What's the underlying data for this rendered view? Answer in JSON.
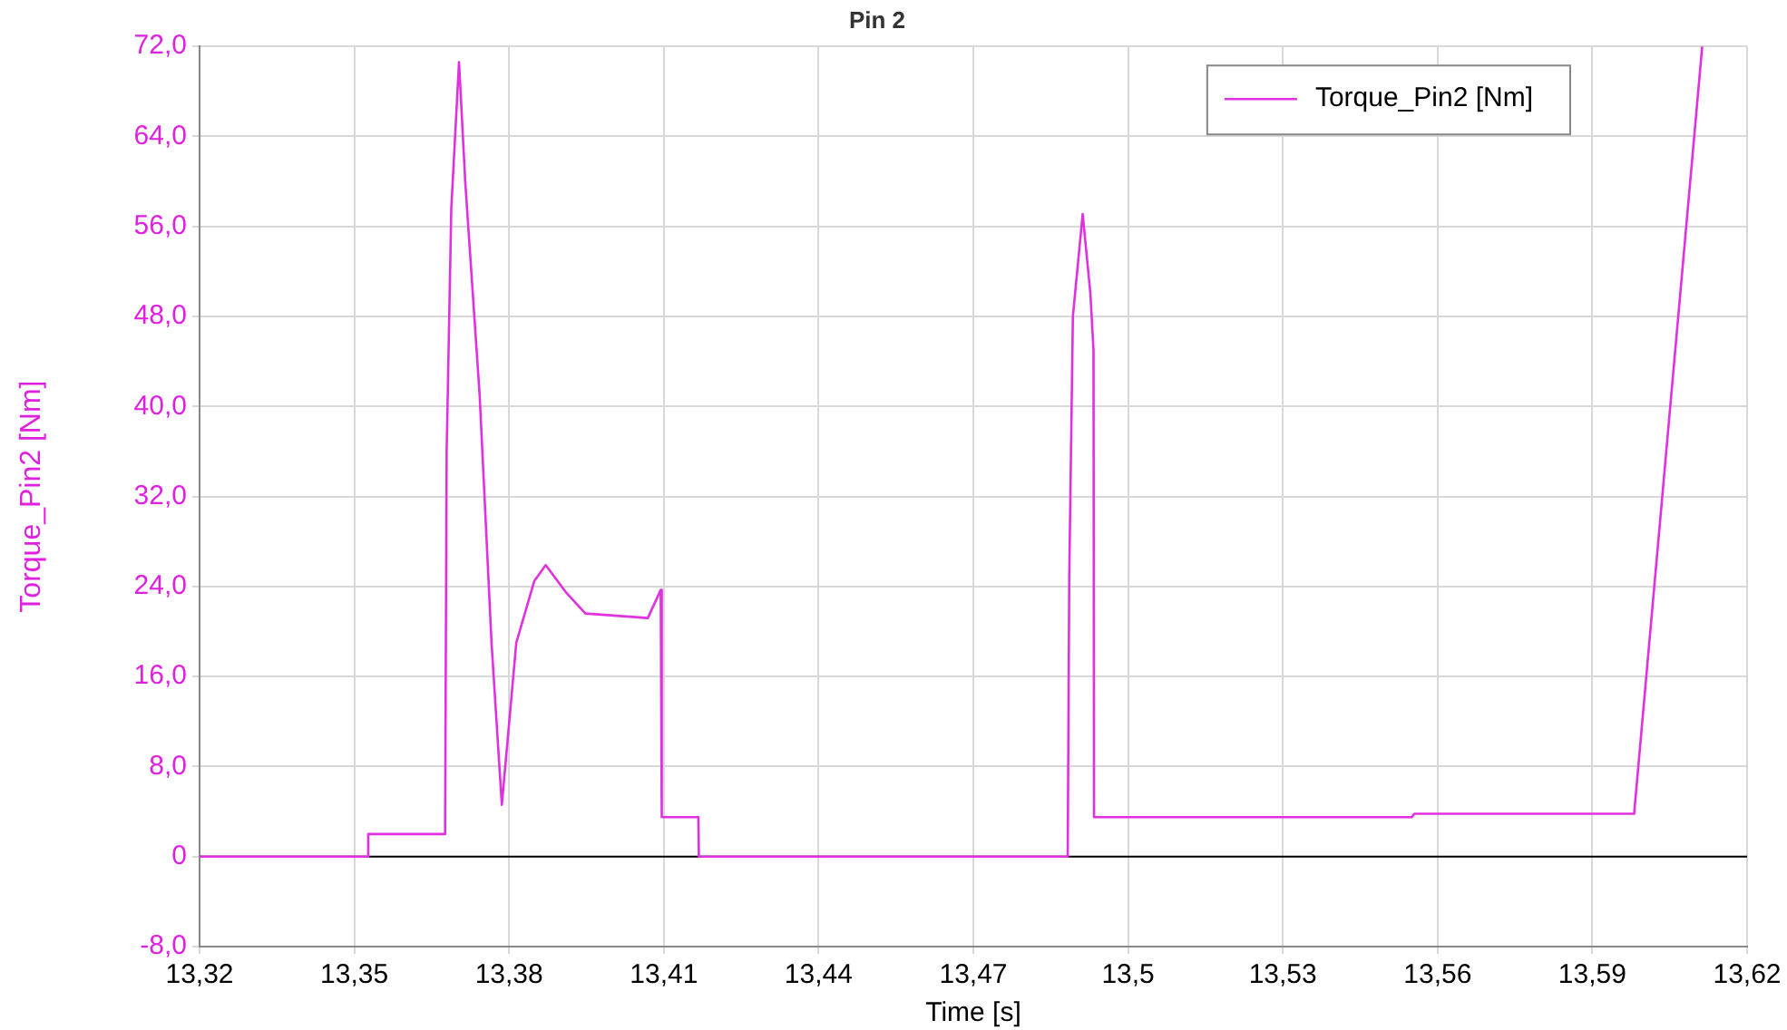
{
  "chart_data": {
    "type": "line",
    "title": "Pin 2",
    "xlabel": "Time [s]",
    "ylabel": "Torque_Pin2 [Nm]",
    "x": [
      13.32,
      13.3526,
      13.3527,
      13.3676,
      13.3679,
      13.3688,
      13.3703,
      13.3715,
      13.3743,
      13.3766,
      13.3786,
      13.3814,
      13.3849,
      13.3871,
      13.391,
      13.3948,
      13.4069,
      13.4094,
      13.4096,
      13.4167,
      13.4168,
      13.4883,
      13.4886,
      13.4893,
      13.4912,
      13.4927,
      13.4933,
      13.4934,
      13.555,
      13.5555,
      13.5981,
      13.6113
    ],
    "series": [
      {
        "name": "Torque_Pin2 [Nm]",
        "color": "#e030e0",
        "values": [
          0,
          0,
          2,
          2,
          36,
          57.6,
          70.6,
          60,
          41,
          19,
          4.6,
          19,
          24.5,
          25.9,
          23.5,
          21.6,
          21.2,
          23.7,
          3.5,
          3.5,
          0,
          0,
          25,
          48,
          57.1,
          50,
          45,
          3.5,
          3.5,
          3.8,
          3.8,
          72
        ]
      }
    ],
    "xlim": [
      13.32,
      13.62
    ],
    "xticks": [
      {
        "value": 13.32,
        "label": "13,32"
      },
      {
        "value": 13.35,
        "label": "13,35"
      },
      {
        "value": 13.38,
        "label": "13,38"
      },
      {
        "value": 13.41,
        "label": "13,41"
      },
      {
        "value": 13.44,
        "label": "13,44"
      },
      {
        "value": 13.47,
        "label": "13,47"
      },
      {
        "value": 13.5,
        "label": "13,5"
      },
      {
        "value": 13.53,
        "label": "13,53"
      },
      {
        "value": 13.56,
        "label": "13,56"
      },
      {
        "value": 13.59,
        "label": "13,59"
      },
      {
        "value": 13.62,
        "label": "13,62"
      }
    ],
    "ylim": [
      -8,
      72
    ],
    "yticks": [
      {
        "value": -8,
        "label": "-8,0"
      },
      0,
      {
        "value": 8,
        "label": "8,0"
      },
      {
        "value": 16,
        "label": "16,0"
      },
      {
        "value": 24,
        "label": "24,0"
      },
      {
        "value": 32,
        "label": "32,0"
      },
      {
        "value": 40,
        "label": "40,0"
      },
      {
        "value": 48,
        "label": "48,0"
      },
      {
        "value": 56,
        "label": "56,0"
      },
      {
        "value": 64,
        "label": "64,0"
      },
      {
        "value": 72,
        "label": "72,0"
      }
    ],
    "ref_lines": [
      {
        "axis": "y",
        "value": 0,
        "color": "#000000"
      }
    ],
    "grid": true,
    "legend": "top right",
    "marker": "none",
    "line_style": "solid"
  }
}
